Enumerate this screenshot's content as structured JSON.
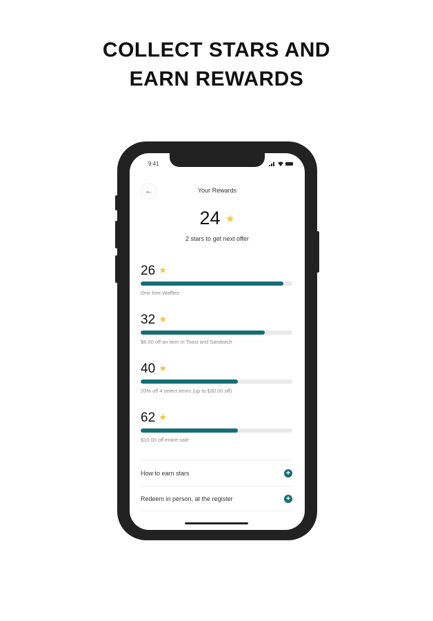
{
  "headline": {
    "line1": "COLLECT STARS AND",
    "line2": "EARN REWARDS"
  },
  "status_bar": {
    "time": "9:41"
  },
  "header": {
    "title": "Your Rewards",
    "back_icon": "arrow-left-icon"
  },
  "summary": {
    "stars": "24",
    "subtitle": "2 stars to get next offer"
  },
  "star_symbol": "★",
  "tiers": [
    {
      "stars": "26",
      "description": "One free Waffles",
      "progress": 0.94
    },
    {
      "stars": "32",
      "description": "$8.00 off an item in Toast and Sandwich",
      "progress": 0.82
    },
    {
      "stars": "40",
      "description": "20% off 4 select items (up to $30.00 off)",
      "progress": 0.64
    },
    {
      "stars": "62",
      "description": "$10.00 off entire sale",
      "progress": 0.64
    }
  ],
  "links": [
    {
      "label": "How to earn stars",
      "icon": "plus-circle-icon"
    },
    {
      "label": "Redeem in person, at the register",
      "icon": "plus-circle-icon"
    }
  ],
  "colors": {
    "accent": "#166e75",
    "star": "#f3c443"
  }
}
